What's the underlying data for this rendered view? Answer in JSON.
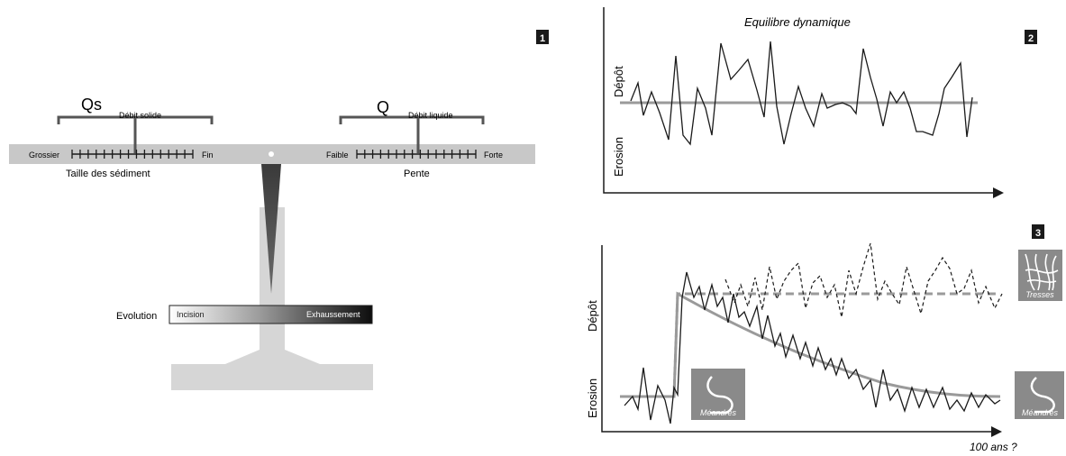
{
  "panel_numbers": [
    "1",
    "2",
    "3"
  ],
  "balance": {
    "left_symbol": "Qs",
    "left_caption": "Débit solide",
    "right_symbol": "Q",
    "right_caption": "Débit liquide",
    "left_scale_min": "Grossier",
    "left_scale_max": "Fin",
    "left_scale_title": "Taille des sédiment",
    "right_scale_min": "Faible",
    "right_scale_max": "Forte",
    "right_scale_title": "Pente",
    "evolution_label": "Evolution",
    "evolution_left": "Incision",
    "evolution_right": "Exhaussement"
  },
  "panel2": {
    "title": "Equilibre dynamique",
    "y_top": "Dépôt",
    "y_bottom": "Erosion"
  },
  "panel3": {
    "y_top": "Dépôt",
    "y_bottom": "Erosion",
    "x_label": "100 ans ?",
    "icon_tresses": "Tresses",
    "icon_meandres_left": "Méandres",
    "icon_meandres_right": "Méandres"
  },
  "colors": {
    "beam": "#c8c8c8",
    "stand": "#d6d6d6",
    "needle": "#555555",
    "equilibrium_line": "#9a9a9a",
    "icon_box": "#8a8a8a",
    "ink": "#1a1a1a"
  }
}
